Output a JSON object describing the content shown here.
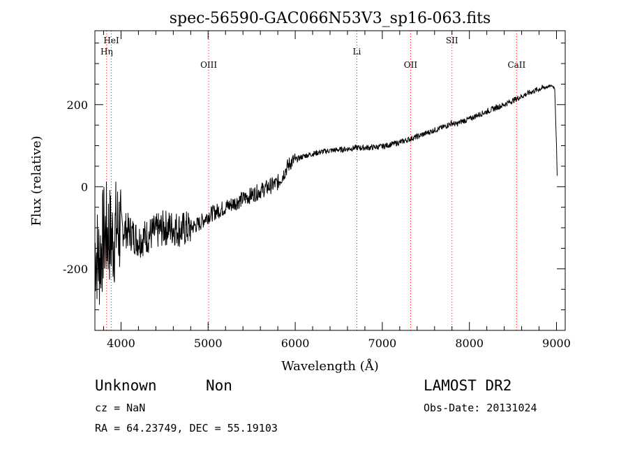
{
  "chart_data": {
    "type": "line",
    "title": "spec-56590-GAC066N53V3_sp16-063.fits",
    "xlabel": "Wavelength (Å)",
    "ylabel": "Flux (relative)",
    "xlim": [
      3700,
      9100
    ],
    "ylim": [
      -350,
      380
    ],
    "x_ticks": [
      4000,
      5000,
      6000,
      7000,
      8000,
      9000
    ],
    "y_ticks": [
      -200,
      0,
      200
    ],
    "x_tick_labels": [
      "4000",
      "5000",
      "6000",
      "7000",
      "8000",
      "9000"
    ],
    "y_tick_labels": [
      "-200",
      "0",
      "200"
    ],
    "grid": false,
    "line_color": "#000000",
    "marker_color": "#ff0000",
    "lines": [
      {
        "label": "HeI",
        "x": 3889,
        "row": 0
      },
      {
        "label": "Hη",
        "x": 3835,
        "row": 1
      },
      {
        "label": "OIII",
        "x": 5007,
        "row": 2
      },
      {
        "label": "Li",
        "x": 6708,
        "row": 1
      },
      {
        "label": "OII",
        "x": 7325,
        "row": 2
      },
      {
        "label": "SII",
        "x": 7800,
        "row": 0
      },
      {
        "label": "CaII",
        "x": 8542,
        "row": 2
      }
    ],
    "series": [
      {
        "x": [
          3700,
          3750,
          3800,
          3850,
          3900,
          3950,
          4000,
          4100,
          4200,
          4300,
          4400,
          4500,
          4600,
          4700,
          4800,
          4900,
          5000,
          5100,
          5200,
          5300,
          5400,
          5500,
          5600,
          5700,
          5800,
          5850,
          5900,
          5950,
          6000,
          6100,
          6200,
          6300,
          6400,
          6500,
          6600,
          6700,
          6800,
          6900,
          7000,
          7100,
          7200,
          7300,
          7400,
          7500,
          7600,
          7700,
          7750,
          7800,
          7850,
          7900,
          8000,
          8100,
          8200,
          8300,
          8400,
          8500,
          8600,
          8700,
          8800,
          8900,
          8950,
          8980,
          9000,
          9010
        ],
        "y": [
          -150,
          -180,
          -120,
          -110,
          -130,
          -100,
          -100,
          -110,
          -130,
          -120,
          -110,
          -100,
          -100,
          -105,
          -100,
          -90,
          -70,
          -60,
          -50,
          -40,
          -30,
          -20,
          -10,
          0,
          10,
          25,
          45,
          60,
          65,
          75,
          80,
          85,
          88,
          90,
          92,
          95,
          95,
          96,
          98,
          103,
          108,
          115,
          122,
          130,
          138,
          145,
          150,
          155,
          152,
          158,
          165,
          175,
          183,
          192,
          200,
          210,
          220,
          230,
          238,
          244,
          246,
          240,
          100,
          5
        ]
      }
    ]
  },
  "footer": {
    "object_class": "Unknown",
    "subclass": "Non",
    "survey": "LAMOST DR2",
    "cz": "cz = NaN",
    "obs_date": "Obs-Date: 20131024",
    "coords": "RA =  64.23749, DEC =  55.19103"
  }
}
